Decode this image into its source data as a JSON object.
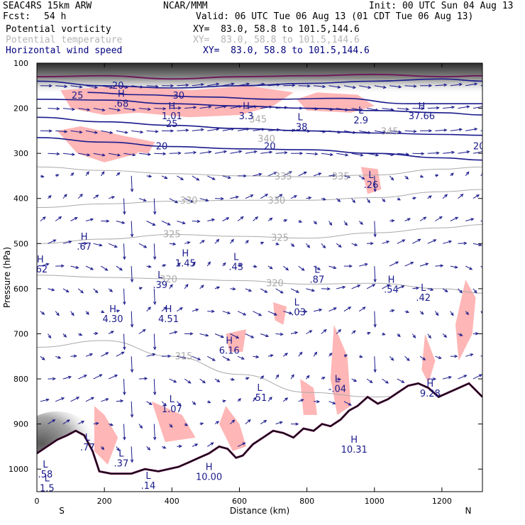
{
  "header": {
    "model": "SEAC4RS 15km ARW",
    "org": "NCAR/MMM",
    "init": "Init: 00 UTC Sun 04 Aug 13",
    "fcst_label": "Fcst:",
    "fcst_value": "54 h",
    "valid": "Valid: 06 UTC Tue 06 Aug 13 (01 CDT Tue 06 Aug 13)"
  },
  "legend": [
    {
      "name": "Potential vorticity",
      "xy": "XY=  83.0, 58.8 to 101.5,144.6",
      "color": "#000000"
    },
    {
      "name": "Potential temperature",
      "xy": "XY=  83.0, 58.8 to 101.5,144.6",
      "color": "#b4b4b4"
    },
    {
      "name": "Horizontal wind speed",
      "xy": "XY=  83.0, 58.8 to 101.5,144.6",
      "color": "#00007f"
    }
  ],
  "colors": {
    "pv_shade": "#ffb6b6",
    "theta": "#aaaaaa",
    "wind": "#1a1a8c",
    "terrain_outer": "#6e1a5a",
    "terrain_inner": "#000000",
    "strat_dark": "#505050"
  },
  "chart_data": {
    "type": "cross-section",
    "xlabel": "Distance (km)",
    "ylabel": "Pressure (hPa)",
    "xlim": [
      0,
      1320
    ],
    "ylim": [
      1050,
      100
    ],
    "x_ticks": [
      "0",
      "200",
      "400",
      "600",
      "800",
      "1000",
      "1200"
    ],
    "y_ticks": [
      "100",
      "200",
      "300",
      "400",
      "500",
      "600",
      "700",
      "800",
      "900",
      "1000"
    ],
    "x_end_labels": {
      "left": "S",
      "right": "N"
    },
    "theta_labels": [
      {
        "text": "335",
        "x": 730,
        "p": 352
      },
      {
        "text": "335",
        "x": 900,
        "p": 352
      },
      {
        "text": "330",
        "x": 450,
        "p": 405
      },
      {
        "text": "330",
        "x": 710,
        "p": 405
      },
      {
        "text": "325",
        "x": 400,
        "p": 480
      },
      {
        "text": "325",
        "x": 720,
        "p": 488
      },
      {
        "text": "320",
        "x": 390,
        "p": 580
      },
      {
        "text": "320",
        "x": 705,
        "p": 588
      },
      {
        "text": "315",
        "x": 435,
        "p": 750
      },
      {
        "text": "340",
        "x": 680,
        "p": 268
      },
      {
        "text": "345",
        "x": 655,
        "p": 225
      },
      {
        "text": "345",
        "x": 1045,
        "p": 252
      }
    ],
    "wind_labels": [
      {
        "text": "20",
        "x": 240,
        "p": 150
      },
      {
        "text": "25",
        "x": 120,
        "p": 172
      },
      {
        "text": "30",
        "x": 420,
        "p": 172
      },
      {
        "text": "25",
        "x": 400,
        "p": 235
      },
      {
        "text": "20",
        "x": 370,
        "p": 285
      },
      {
        "text": "20",
        "x": 690,
        "p": 285
      },
      {
        "text": "20",
        "x": 1310,
        "p": 285
      }
    ],
    "extrema": [
      {
        "type": "H",
        "value": ".68",
        "x": 250,
        "p": 178
      },
      {
        "type": "H",
        "value": "1.01",
        "x": 400,
        "p": 205
      },
      {
        "type": "H",
        "value": "3.3",
        "x": 620,
        "p": 205
      },
      {
        "type": "L",
        "value": ".38",
        "x": 780,
        "p": 230
      },
      {
        "type": "L",
        "value": "2.9",
        "x": 960,
        "p": 215
      },
      {
        "type": "H",
        "value": "37.66",
        "x": 1140,
        "p": 205
      },
      {
        "type": "L",
        "value": ".26",
        "x": 990,
        "p": 358
      },
      {
        "type": "H",
        "value": ".67",
        "x": 140,
        "p": 495
      },
      {
        "type": "H",
        "value": ".62",
        "x": 10,
        "p": 545
      },
      {
        "type": "H",
        "value": "1.45",
        "x": 440,
        "p": 532
      },
      {
        "type": "L",
        "value": ".43",
        "x": 590,
        "p": 540
      },
      {
        "type": "L",
        "value": ".39",
        "x": 365,
        "p": 580
      },
      {
        "type": "L",
        "value": ".87",
        "x": 830,
        "p": 568
      },
      {
        "type": "H",
        "value": ".54",
        "x": 1050,
        "p": 590
      },
      {
        "type": "L",
        "value": ".42",
        "x": 1145,
        "p": 608
      },
      {
        "type": "L",
        "value": "-.03",
        "x": 770,
        "p": 640
      },
      {
        "type": "H",
        "value": "4.30",
        "x": 225,
        "p": 655
      },
      {
        "type": "H",
        "value": "4.51",
        "x": 390,
        "p": 655
      },
      {
        "type": "H",
        "value": "6.16",
        "x": 570,
        "p": 725
      },
      {
        "type": "L",
        "value": "-.04",
        "x": 890,
        "p": 810
      },
      {
        "type": "H",
        "value": "9.28",
        "x": 1165,
        "p": 820
      },
      {
        "type": "L",
        "value": ".51",
        "x": 660,
        "p": 830
      },
      {
        "type": "L",
        "value": "1.07",
        "x": 400,
        "p": 855
      },
      {
        "type": "H",
        "value": "10.31",
        "x": 940,
        "p": 945
      },
      {
        "type": "L",
        "value": ".77",
        "x": 150,
        "p": 940
      },
      {
        "type": "L",
        "value": ".37",
        "x": 250,
        "p": 975
      },
      {
        "type": "H",
        "value": "10.00",
        "x": 510,
        "p": 1005
      },
      {
        "type": "L",
        "value": ".14",
        "x": 330,
        "p": 1025
      },
      {
        "type": "L",
        "value": "1.5",
        "x": 30,
        "p": 1030
      },
      {
        "type": "L",
        "value": ".58",
        "x": 25,
        "p": 1000
      }
    ],
    "terrain_profile": [
      [
        0,
        965
      ],
      [
        30,
        950
      ],
      [
        60,
        935
      ],
      [
        90,
        925
      ],
      [
        115,
        915
      ],
      [
        140,
        925
      ],
      [
        165,
        960
      ],
      [
        185,
        1005
      ],
      [
        220,
        1010
      ],
      [
        280,
        1010
      ],
      [
        320,
        1000
      ],
      [
        360,
        1005
      ],
      [
        420,
        995
      ],
      [
        450,
        985
      ],
      [
        480,
        975
      ],
      [
        510,
        965
      ],
      [
        540,
        950
      ],
      [
        565,
        955
      ],
      [
        590,
        975
      ],
      [
        610,
        970
      ],
      [
        640,
        945
      ],
      [
        670,
        930
      ],
      [
        700,
        915
      ],
      [
        730,
        920
      ],
      [
        760,
        930
      ],
      [
        790,
        910
      ],
      [
        820,
        915
      ],
      [
        845,
        900
      ],
      [
        870,
        905
      ],
      [
        900,
        890
      ],
      [
        925,
        870
      ],
      [
        950,
        860
      ],
      [
        980,
        840
      ],
      [
        1010,
        855
      ],
      [
        1040,
        845
      ],
      [
        1070,
        830
      ],
      [
        1100,
        815
      ],
      [
        1130,
        810
      ],
      [
        1160,
        820
      ],
      [
        1190,
        840
      ],
      [
        1220,
        830
      ],
      [
        1250,
        820
      ],
      [
        1280,
        810
      ],
      [
        1300,
        825
      ],
      [
        1320,
        840
      ]
    ],
    "theta_contours": [
      {
        "value": 335,
        "points": [
          [
            0,
            330
          ],
          [
            200,
            338
          ],
          [
            400,
            345
          ],
          [
            600,
            350
          ],
          [
            800,
            352
          ],
          [
            1000,
            348
          ],
          [
            1200,
            335
          ],
          [
            1320,
            330
          ]
        ]
      },
      {
        "value": 330,
        "points": [
          [
            0,
            420
          ],
          [
            200,
            412
          ],
          [
            400,
            406
          ],
          [
            600,
            404
          ],
          [
            800,
            404
          ],
          [
            1000,
            398
          ],
          [
            1200,
            385
          ],
          [
            1320,
            380
          ]
        ]
      },
      {
        "value": 325,
        "points": [
          [
            0,
            500
          ],
          [
            200,
            490
          ],
          [
            400,
            480
          ],
          [
            600,
            484
          ],
          [
            800,
            488
          ],
          [
            1000,
            476
          ],
          [
            1200,
            465
          ],
          [
            1320,
            458
          ]
        ]
      },
      {
        "value": 320,
        "points": [
          [
            0,
            570
          ],
          [
            200,
            575
          ],
          [
            400,
            578
          ],
          [
            600,
            582
          ],
          [
            800,
            590
          ],
          [
            1000,
            588
          ],
          [
            1200,
            600
          ],
          [
            1320,
            610
          ]
        ]
      },
      {
        "value": 315,
        "points": [
          [
            0,
            730
          ],
          [
            200,
            715
          ],
          [
            400,
            750
          ],
          [
            600,
            790
          ],
          [
            800,
            830
          ],
          [
            1000,
            840
          ],
          [
            1200,
            835
          ],
          [
            1320,
            840
          ]
        ]
      }
    ],
    "wind_contours": [
      {
        "value": 20,
        "points": [
          [
            0,
            140
          ],
          [
            200,
            150
          ],
          [
            400,
            155
          ],
          [
            600,
            150
          ],
          [
            800,
            145
          ],
          [
            1000,
            140
          ],
          [
            1200,
            135
          ],
          [
            1320,
            140
          ]
        ]
      },
      {
        "value": 25,
        "points": [
          [
            0,
            180
          ],
          [
            200,
            182
          ],
          [
            400,
            190
          ],
          [
            600,
            195
          ],
          [
            800,
            200
          ],
          [
            1000,
            205
          ],
          [
            1200,
            210
          ],
          [
            1320,
            215
          ]
        ]
      },
      {
        "value": 30,
        "points": [
          [
            150,
            165
          ],
          [
            300,
            170
          ],
          [
            500,
            175
          ],
          [
            700,
            180
          ],
          [
            900,
            178
          ],
          [
            1100,
            190
          ],
          [
            1320,
            190
          ]
        ]
      },
      {
        "value": 25,
        "points": [
          [
            0,
            220
          ],
          [
            200,
            230
          ],
          [
            400,
            238
          ],
          [
            600,
            245
          ],
          [
            800,
            250
          ],
          [
            1000,
            255
          ],
          [
            1200,
            258
          ],
          [
            1320,
            260
          ]
        ]
      },
      {
        "value": 20,
        "points": [
          [
            0,
            265
          ],
          [
            200,
            275
          ],
          [
            400,
            285
          ],
          [
            600,
            290
          ],
          [
            800,
            292
          ],
          [
            1000,
            300
          ],
          [
            1200,
            310
          ],
          [
            1320,
            315
          ]
        ]
      }
    ],
    "pv_contours": [
      {
        "points": [
          [
            0,
            130
          ],
          [
            200,
            128
          ],
          [
            400,
            135
          ],
          [
            600,
            130
          ],
          [
            800,
            128
          ],
          [
            1000,
            125
          ],
          [
            1200,
            130
          ],
          [
            1320,
            128
          ]
        ]
      }
    ],
    "pv_shaded_regions": [
      {
        "points": [
          [
            70,
            160
          ],
          [
            250,
            150
          ],
          [
            460,
            160
          ],
          [
            620,
            150
          ],
          [
            760,
            165
          ],
          [
            700,
            195
          ],
          [
            600,
            215
          ],
          [
            450,
            220
          ],
          [
            300,
            210
          ],
          [
            200,
            215
          ],
          [
            100,
            200
          ]
        ]
      },
      {
        "points": [
          [
            60,
            250
          ],
          [
            130,
            240
          ],
          [
            250,
            260
          ],
          [
            300,
            300
          ],
          [
            200,
            320
          ],
          [
            120,
            300
          ]
        ]
      },
      {
        "points": [
          [
            250,
            260
          ],
          [
            350,
            275
          ],
          [
            330,
            300
          ],
          [
            270,
            295
          ]
        ]
      },
      {
        "points": [
          [
            770,
            180
          ],
          [
            830,
            165
          ],
          [
            950,
            170
          ],
          [
            1000,
            195
          ],
          [
            930,
            210
          ],
          [
            800,
            205
          ]
        ]
      },
      {
        "points": [
          [
            960,
            330
          ],
          [
            1010,
            335
          ],
          [
            1020,
            380
          ],
          [
            980,
            390
          ]
        ]
      },
      {
        "points": [
          [
            1270,
            580
          ],
          [
            1300,
            620
          ],
          [
            1290,
            700
          ],
          [
            1250,
            760
          ],
          [
            1240,
            680
          ]
        ]
      },
      {
        "points": [
          [
            1150,
            700
          ],
          [
            1180,
            760
          ],
          [
            1160,
            810
          ],
          [
            1140,
            780
          ]
        ]
      },
      {
        "points": [
          [
            880,
            680
          ],
          [
            920,
            750
          ],
          [
            930,
            860
          ],
          [
            890,
            880
          ],
          [
            870,
            800
          ]
        ]
      },
      {
        "points": [
          [
            560,
            700
          ],
          [
            620,
            690
          ],
          [
            610,
            740
          ],
          [
            570,
            740
          ]
        ]
      },
      {
        "points": [
          [
            700,
            630
          ],
          [
            740,
            640
          ],
          [
            730,
            680
          ],
          [
            705,
            670
          ]
        ]
      },
      {
        "points": [
          [
            170,
            860
          ],
          [
            200,
            880
          ],
          [
            240,
            930
          ],
          [
            210,
            990
          ],
          [
            170,
            960
          ]
        ]
      },
      {
        "points": [
          [
            340,
            850
          ],
          [
            430,
            880
          ],
          [
            470,
            930
          ],
          [
            380,
            940
          ]
        ]
      },
      {
        "points": [
          [
            560,
            860
          ],
          [
            600,
            900
          ],
          [
            620,
            950
          ],
          [
            580,
            960
          ],
          [
            540,
            900
          ]
        ]
      },
      {
        "points": [
          [
            780,
            800
          ],
          [
            820,
            820
          ],
          [
            830,
            880
          ],
          [
            790,
            880
          ]
        ]
      }
    ],
    "wind_vectors": {
      "rows_hPa": [
        150,
        200,
        250,
        300,
        350,
        400,
        450,
        500,
        550,
        600,
        650,
        700,
        750,
        800,
        850,
        900,
        950,
        1000
      ],
      "dx_km": 45
    }
  }
}
